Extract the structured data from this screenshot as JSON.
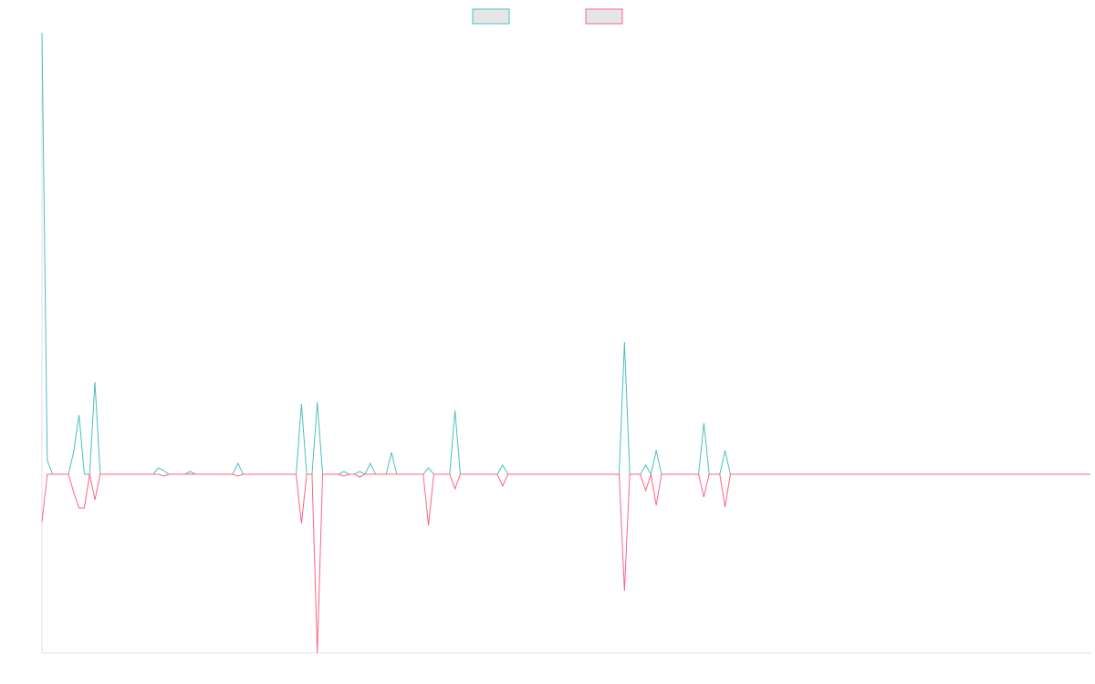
{
  "chart_data": {
    "type": "line",
    "ylim": [
      -196,
      484
    ],
    "legend": "top",
    "series": [
      {
        "color": "#4bc0c0",
        "values": [
          484,
          15,
          0,
          0,
          0,
          0,
          25,
          65,
          0,
          0,
          101,
          0,
          0,
          0,
          0,
          0,
          0,
          0,
          0,
          0,
          0,
          0,
          7,
          4,
          0,
          0,
          0,
          0,
          3,
          0,
          0,
          0,
          0,
          0,
          0,
          0,
          0,
          12,
          0,
          0,
          0,
          0,
          0,
          0,
          0,
          0,
          0,
          0,
          0,
          77,
          0,
          0,
          79,
          0,
          0,
          0,
          0,
          3,
          0,
          0,
          3,
          0,
          12,
          0,
          0,
          0,
          24,
          0,
          0,
          0,
          0,
          0,
          0,
          7,
          0,
          0,
          0,
          0,
          70,
          0,
          0,
          0,
          0,
          0,
          0,
          0,
          0,
          10,
          0,
          0,
          0,
          0,
          0,
          0,
          0,
          0,
          0,
          0,
          0,
          0,
          0,
          0,
          0,
          0,
          0,
          0,
          0,
          0,
          0,
          0,
          145,
          0,
          0,
          0,
          10,
          0,
          26,
          0,
          0,
          0,
          0,
          0,
          0,
          0,
          0,
          56,
          0,
          0,
          0,
          26,
          0,
          0,
          0,
          0,
          0,
          0,
          0,
          0,
          0,
          0,
          0,
          0,
          0,
          0,
          0,
          0,
          0,
          0,
          0,
          0,
          0,
          0,
          0,
          0,
          0,
          0,
          0,
          0,
          0,
          0,
          0,
          0,
          0,
          0,
          0,
          0,
          0,
          0,
          0,
          0,
          0,
          0,
          0,
          0,
          0,
          0,
          0,
          0,
          0,
          0,
          0,
          0,
          0,
          0,
          0,
          0,
          0,
          0,
          0,
          0,
          0,
          0,
          0,
          0,
          0,
          0,
          0,
          0,
          0
        ]
      },
      {
        "color": "#ff6384",
        "values": [
          -52,
          0,
          0,
          0,
          0,
          0,
          -20,
          -37,
          -37,
          0,
          -28,
          0,
          0,
          0,
          0,
          0,
          0,
          0,
          0,
          0,
          0,
          0,
          0,
          -2,
          0,
          0,
          0,
          0,
          0,
          0,
          0,
          0,
          0,
          0,
          0,
          0,
          0,
          -2,
          0,
          0,
          0,
          0,
          0,
          0,
          0,
          0,
          0,
          0,
          0,
          -54,
          0,
          0,
          -196,
          0,
          0,
          0,
          0,
          -2,
          0,
          0,
          -3,
          0,
          0,
          0,
          0,
          0,
          0,
          0,
          0,
          0,
          0,
          0,
          0,
          -56,
          0,
          0,
          0,
          0,
          -16,
          0,
          0,
          0,
          0,
          0,
          0,
          0,
          0,
          -13,
          0,
          0,
          0,
          0,
          0,
          0,
          0,
          0,
          0,
          0,
          0,
          0,
          0,
          0,
          0,
          0,
          0,
          0,
          0,
          0,
          0,
          0,
          -128,
          0,
          0,
          0,
          -18,
          0,
          -34,
          0,
          0,
          0,
          0,
          0,
          0,
          0,
          0,
          -25,
          0,
          0,
          0,
          -36,
          0,
          0,
          0,
          0,
          0,
          0,
          0,
          0,
          0,
          0,
          0,
          0,
          0,
          0,
          0,
          0,
          0,
          0,
          0,
          0,
          0,
          0,
          0,
          0,
          0,
          0,
          0,
          0,
          0,
          0,
          0,
          0,
          0,
          0,
          0,
          0,
          0,
          0,
          0,
          0,
          0,
          0,
          0,
          0,
          0,
          0,
          0,
          0,
          0,
          0,
          0,
          0,
          0,
          0,
          0,
          0,
          0,
          0,
          0,
          0,
          0,
          0,
          0,
          0,
          0,
          0,
          0,
          0,
          0
        ]
      }
    ]
  }
}
